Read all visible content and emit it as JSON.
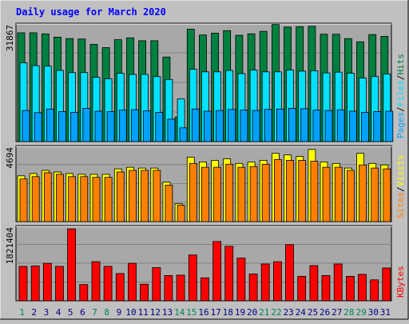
{
  "title": "Daily usage for March 2020",
  "colors": {
    "background": "#c0c0c0",
    "plot_background": "#a8a8a8",
    "title": "#0000ff",
    "hits": "#008040",
    "files": "#00e0ff",
    "pages": "#00a0ff",
    "visits": "#ffff00",
    "sites": "#ff8000",
    "kbytes": "#ff0000",
    "weekend_label": "#00805c",
    "weekday_label": "#000080"
  },
  "chart_data": [
    {
      "type": "bar",
      "panel": "requests",
      "ylim": [
        0,
        31867
      ],
      "ymax_label": "31867",
      "legend": [
        {
          "label": "Pages",
          "color": "#00a0ff"
        },
        {
          "label": "/",
          "color": "#000000"
        },
        {
          "label": "Files",
          "color": "#00e0ff"
        },
        {
          "label": "/",
          "color": "#000000"
        },
        {
          "label": "Hits",
          "color": "#008040"
        }
      ],
      "categories": [
        "1",
        "2",
        "3",
        "4",
        "5",
        "6",
        "7",
        "8",
        "9",
        "10",
        "11",
        "12",
        "13",
        "14",
        "15",
        "16",
        "17",
        "18",
        "19",
        "20",
        "21",
        "22",
        "23",
        "24",
        "25",
        "26",
        "27",
        "28",
        "29",
        "30",
        "31"
      ],
      "series": [
        {
          "name": "Hits",
          "values": [
            30100,
            30100,
            29800,
            28900,
            28500,
            28400,
            26900,
            26000,
            28200,
            28700,
            27900,
            27900,
            23400,
            6800,
            31100,
            29500,
            30000,
            30700,
            29400,
            29800,
            30500,
            32400,
            31700,
            31800,
            31900,
            29700,
            29700,
            28500,
            27600,
            29600,
            29100
          ]
        },
        {
          "name": "Files",
          "values": [
            21800,
            21000,
            20900,
            19700,
            19100,
            19100,
            17800,
            17400,
            18900,
            18600,
            18600,
            18000,
            17200,
            11800,
            20000,
            19300,
            19300,
            19700,
            18800,
            19800,
            19300,
            19300,
            19800,
            19500,
            19600,
            19000,
            19200,
            18900,
            17600,
            18000,
            18700
          ]
        },
        {
          "name": "Pages",
          "values": [
            8600,
            8000,
            9000,
            8300,
            8100,
            9200,
            8400,
            8300,
            8700,
            8800,
            8500,
            8100,
            6200,
            3800,
            9000,
            8400,
            8600,
            8900,
            8700,
            8600,
            8900,
            9000,
            9200,
            9100,
            8700,
            8600,
            8800,
            8400,
            8100,
            8300,
            8400
          ]
        }
      ]
    },
    {
      "type": "bar",
      "panel": "visitors",
      "ylim": [
        0,
        4694
      ],
      "ymax_label": "4694",
      "legend": [
        {
          "label": "Sites",
          "color": "#ff8000"
        },
        {
          "label": "/",
          "color": "#000000"
        },
        {
          "label": "Visits",
          "color": "#ffff00"
        }
      ],
      "categories": [
        "1",
        "2",
        "3",
        "4",
        "5",
        "6",
        "7",
        "8",
        "9",
        "10",
        "11",
        "12",
        "13",
        "14",
        "15",
        "16",
        "17",
        "18",
        "19",
        "20",
        "21",
        "22",
        "23",
        "24",
        "25",
        "26",
        "27",
        "28",
        "29",
        "30",
        "31"
      ],
      "series": [
        {
          "name": "Visits",
          "values": [
            2950,
            3100,
            3300,
            3200,
            3100,
            3050,
            3050,
            3050,
            3400,
            3500,
            3450,
            3450,
            2550,
            1150,
            4150,
            3850,
            3950,
            4050,
            3750,
            3850,
            3950,
            4400,
            4300,
            4200,
            4650,
            3850,
            3750,
            3450,
            4400,
            3750,
            3650
          ]
        },
        {
          "name": "Sites",
          "values": [
            2750,
            2900,
            3150,
            3050,
            2900,
            2900,
            2850,
            2850,
            3200,
            3300,
            3300,
            3300,
            2350,
            1050,
            3750,
            3500,
            3500,
            3700,
            3500,
            3550,
            3700,
            4000,
            3950,
            3950,
            3900,
            3500,
            3500,
            3300,
            3650,
            3450,
            3400
          ]
        }
      ]
    },
    {
      "type": "bar",
      "panel": "bandwidth",
      "ylim": [
        0,
        1821404
      ],
      "ymax_label": "1821404",
      "legend": [
        {
          "label": "KBytes",
          "color": "#ff0000"
        }
      ],
      "categories": [
        "1",
        "2",
        "3",
        "4",
        "5",
        "6",
        "7",
        "8",
        "9",
        "10",
        "11",
        "12",
        "13",
        "14",
        "15",
        "16",
        "17",
        "18",
        "19",
        "20",
        "21",
        "22",
        "23",
        "24",
        "25",
        "26",
        "27",
        "28",
        "29",
        "30",
        "31"
      ],
      "series": [
        {
          "name": "KBytes",
          "values": [
            870000,
            880000,
            950000,
            870000,
            1820000,
            410000,
            990000,
            870000,
            690000,
            950000,
            420000,
            840000,
            640000,
            650000,
            1160000,
            580000,
            1500000,
            1380000,
            1080000,
            680000,
            930000,
            990000,
            1420000,
            620000,
            890000,
            640000,
            930000,
            620000,
            670000,
            530000,
            830000
          ]
        }
      ]
    }
  ],
  "weekend_days": [
    1,
    7,
    8,
    14,
    15,
    21,
    22,
    28,
    29
  ]
}
